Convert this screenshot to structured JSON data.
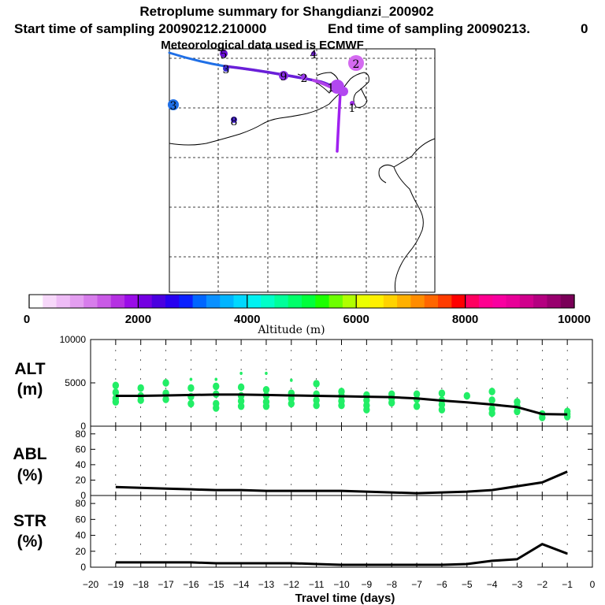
{
  "header": {
    "title": "Retroplume summary for Shangdianzi_200902",
    "start_label": "Start time of sampling 20090212.210000",
    "end_label": "End time of sampling 20090213.",
    "end_value": "0",
    "met_label": "Meteorological data used is ECMWF"
  },
  "map": {
    "markers": [
      {
        "label": "5",
        "color": "#6a0dd8"
      },
      {
        "label": "4",
        "color": "#7a22e6"
      },
      {
        "label": "2",
        "color": "#d46af0"
      },
      {
        "label": "3",
        "color": "#3a2ad0"
      },
      {
        "label": "9",
        "color": "#8a2ee6"
      },
      {
        "label": "2",
        "color": "#9a38ee"
      },
      {
        "label": "1",
        "color": "#b248f0"
      },
      {
        "label": "3",
        "color": "#1f6fe6"
      },
      {
        "label": "8",
        "color": "#4a25d8"
      },
      {
        "label": "1",
        "color": "#a030e8"
      }
    ],
    "trajectory_colors": [
      "#1f6fe6",
      "#6a1fd8",
      "#b040e8",
      "#a020f0"
    ]
  },
  "colorbar": {
    "label": "Altitude (m)",
    "tick_labels": [
      "0",
      "2000",
      "4000",
      "6000",
      "8000",
      "10000"
    ],
    "colors": [
      "#ffffff",
      "#f7d8fa",
      "#eebcf6",
      "#e39ef0",
      "#d77deb",
      "#c95ae6",
      "#b530e2",
      "#9a0ce8",
      "#7400e2",
      "#4a00e0",
      "#2800f0",
      "#0a20ff",
      "#0066ff",
      "#0a90ff",
      "#00b4ff",
      "#00d8ff",
      "#00f2f2",
      "#00ffc8",
      "#00ff9a",
      "#00ff6a",
      "#00ff3c",
      "#1cff00",
      "#6cff00",
      "#b0ff00",
      "#ebff00",
      "#fff000",
      "#ffd200",
      "#ffb000",
      "#ff8c00",
      "#ff6600",
      "#ff3c00",
      "#ff0000",
      "#ff0060",
      "#ff0090",
      "#f800a0",
      "#e80098",
      "#d0008c",
      "#b40080",
      "#98006e",
      "#7a0058"
    ]
  },
  "chart_data": [
    {
      "type": "line",
      "panel": "ALT",
      "ylabel": "ALT\n(m)",
      "ylabel_lines": [
        "ALT",
        "(m)"
      ],
      "ylim": [
        0,
        10000
      ],
      "yticks": [
        "0",
        "5000",
        "10000"
      ],
      "xlim": [
        -20,
        0
      ],
      "x": [
        -19,
        -18,
        -17,
        -16,
        -15,
        -14,
        -13,
        -12,
        -11,
        -10,
        -9,
        -8,
        -7,
        -6,
        -5,
        -4,
        -3,
        -2,
        -1
      ],
      "series": [
        {
          "name": "mean altitude",
          "values": [
            3500,
            3500,
            3550,
            3600,
            3650,
            3650,
            3600,
            3550,
            3500,
            3450,
            3400,
            3350,
            3200,
            2950,
            2750,
            2500,
            2200,
            1400,
            1350
          ]
        }
      ],
      "scatter_color": "#22ee66",
      "scatter": [
        {
          "x": -19,
          "y": [
            4700,
            3900,
            3200,
            2800
          ]
        },
        {
          "x": -18,
          "y": [
            4400,
            3500,
            3000
          ]
        },
        {
          "x": -17,
          "y": [
            5000,
            3800,
            3100
          ]
        },
        {
          "x": -16,
          "y": [
            5400,
            4400,
            3400,
            2600
          ]
        },
        {
          "x": -15,
          "y": [
            5400,
            4600,
            3700,
            2600,
            2100
          ]
        },
        {
          "x": -14,
          "y": [
            6100,
            4500,
            3500,
            2900,
            2300
          ]
        },
        {
          "x": -13,
          "y": [
            6100,
            4200,
            3500,
            2800,
            2300
          ]
        },
        {
          "x": -12,
          "y": [
            5300,
            3800,
            3200,
            2600
          ]
        },
        {
          "x": -11,
          "y": [
            4900,
            3700,
            3000,
            2400
          ]
        },
        {
          "x": -10,
          "y": [
            4000,
            3500,
            2900,
            2400
          ]
        },
        {
          "x": -9,
          "y": [
            3600,
            3000,
            2400,
            1900
          ]
        },
        {
          "x": -8,
          "y": [
            3700,
            3200,
            2700
          ]
        },
        {
          "x": -7,
          "y": [
            3700,
            3100,
            2300
          ]
        },
        {
          "x": -6,
          "y": [
            3800,
            3000,
            2500,
            1900
          ]
        },
        {
          "x": -5,
          "y": [
            3500
          ]
        },
        {
          "x": -4,
          "y": [
            4000,
            3000,
            2000,
            1500
          ]
        },
        {
          "x": -3,
          "y": [
            2800,
            2300,
            1700
          ]
        },
        {
          "x": -2,
          "y": [
            1400,
            1000
          ]
        },
        {
          "x": -1,
          "y": [
            1700,
            1400,
            1100
          ]
        }
      ]
    },
    {
      "type": "line",
      "panel": "ABL",
      "ylabel": "ABL\n(%)",
      "ylabel_lines": [
        "ABL",
        "(%)"
      ],
      "ylim": [
        0,
        90
      ],
      "yticks": [
        "0",
        "20",
        "40",
        "60",
        "80"
      ],
      "xlim": [
        -20,
        0
      ],
      "x": [
        -19,
        -18,
        -17,
        -16,
        -15,
        -14,
        -13,
        -12,
        -11,
        -10,
        -9,
        -8,
        -7,
        -6,
        -5,
        -4,
        -3,
        -2,
        -1
      ],
      "series": [
        {
          "name": "ABL fraction",
          "values": [
            11,
            10,
            9,
            8,
            7,
            7,
            6,
            6,
            6,
            6,
            5,
            4,
            3,
            4,
            5,
            7,
            12,
            17,
            31
          ]
        }
      ]
    },
    {
      "type": "line",
      "panel": "STR",
      "ylabel": "STR\n(%)",
      "ylabel_lines": [
        "STR",
        "(%)"
      ],
      "ylim": [
        0,
        90
      ],
      "yticks": [
        "0",
        "20",
        "40",
        "60",
        "80"
      ],
      "xlim": [
        -20,
        0
      ],
      "x": [
        -19,
        -18,
        -17,
        -16,
        -15,
        -14,
        -13,
        -12,
        -11,
        -10,
        -9,
        -8,
        -7,
        -6,
        -5,
        -4,
        -3,
        -2,
        -1
      ],
      "xticks": [
        "−20",
        "−19",
        "−18",
        "−17",
        "−16",
        "−15",
        "−14",
        "−13",
        "−12",
        "−11",
        "−10",
        "−9",
        "−8",
        "−7",
        "−6",
        "−5",
        "−4",
        "−3",
        "−2",
        "−1",
        "0"
      ],
      "xlabel": "Travel time (days)",
      "series": [
        {
          "name": "STR fraction",
          "values": [
            6,
            6,
            6,
            6,
            5,
            5,
            5,
            5,
            4,
            3,
            3,
            3,
            3,
            3,
            4,
            8,
            10,
            29,
            17
          ]
        }
      ]
    }
  ]
}
